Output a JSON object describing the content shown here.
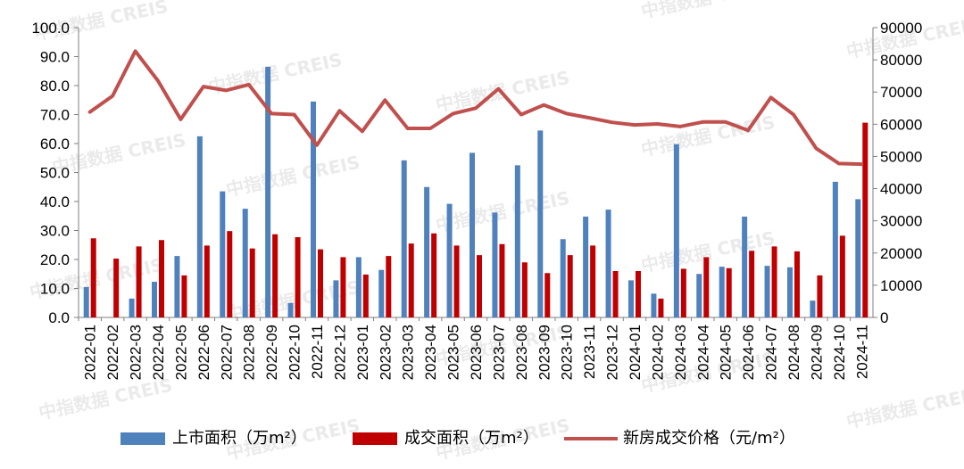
{
  "watermark": "中指数据 CREIS",
  "chart_data": {
    "type": "bar+line",
    "categories": [
      "2022-01",
      "2022-02",
      "2022-03",
      "2022-04",
      "2022-05",
      "2022-06",
      "2022-07",
      "2022-08",
      "2022-09",
      "2022-10",
      "2022-11",
      "2022-12",
      "2023-01",
      "2023-02",
      "2023-03",
      "2023-04",
      "2023-05",
      "2023-06",
      "2023-07",
      "2023-08",
      "2023-09",
      "2023-10",
      "2023-11",
      "2023-12",
      "2024-01",
      "2024-02",
      "2024-03",
      "2024-04",
      "2024-05",
      "2024-06",
      "2024-07",
      "2024-08",
      "2024-09",
      "2024-10",
      "2024-11"
    ],
    "left_axis": {
      "min": 0,
      "max": 100,
      "step": 10,
      "tick_labels": [
        "0.0",
        "10.0",
        "20.0",
        "30.0",
        "40.0",
        "50.0",
        "60.0",
        "70.0",
        "80.0",
        "90.0",
        "100.0"
      ]
    },
    "right_axis": {
      "min": 0,
      "max": 90000,
      "step": 10000,
      "tick_labels": [
        "0",
        "10000",
        "20000",
        "30000",
        "40000",
        "50000",
        "60000",
        "70000",
        "80000",
        "90000"
      ]
    },
    "series": [
      {
        "name": "上市面积（万m²）",
        "type": "bar",
        "axis": "left",
        "color": "#4F81BD",
        "values": [
          10.5,
          0,
          6.5,
          12.3,
          21.2,
          62.5,
          43.5,
          37.5,
          86.5,
          5.0,
          74.5,
          12.8,
          20.8,
          16.4,
          54.2,
          45.0,
          39.2,
          56.8,
          36.2,
          52.5,
          64.5,
          27.0,
          34.8,
          37.2,
          12.8,
          8.2,
          59.8,
          15.0,
          17.5,
          34.8,
          17.8,
          17.3,
          5.8,
          46.8,
          40.8
        ]
      },
      {
        "name": "成交面积（万m²）",
        "type": "bar",
        "axis": "left",
        "color": "#C00000",
        "values": [
          27.3,
          20.3,
          24.5,
          26.7,
          14.5,
          24.8,
          29.8,
          23.8,
          28.7,
          27.7,
          23.5,
          20.8,
          14.8,
          21.2,
          25.5,
          29.0,
          24.8,
          21.5,
          25.3,
          19.0,
          15.3,
          21.5,
          24.8,
          16.0,
          16.0,
          6.5,
          16.8,
          20.8,
          17.0,
          23.0,
          24.5,
          22.8,
          14.5,
          28.2,
          67.2
        ]
      },
      {
        "name": "新房成交价格（元/m²）",
        "type": "line",
        "axis": "right",
        "color": "#C0504D",
        "values": [
          63800,
          68800,
          82700,
          73500,
          61500,
          71700,
          70500,
          72300,
          63300,
          63000,
          53500,
          64200,
          57800,
          67500,
          58700,
          58700,
          63300,
          65000,
          71000,
          63000,
          66000,
          63300,
          62000,
          60600,
          59800,
          60100,
          59300,
          60700,
          60700,
          58100,
          68300,
          63000,
          52500,
          47800,
          47600
        ]
      }
    ]
  }
}
